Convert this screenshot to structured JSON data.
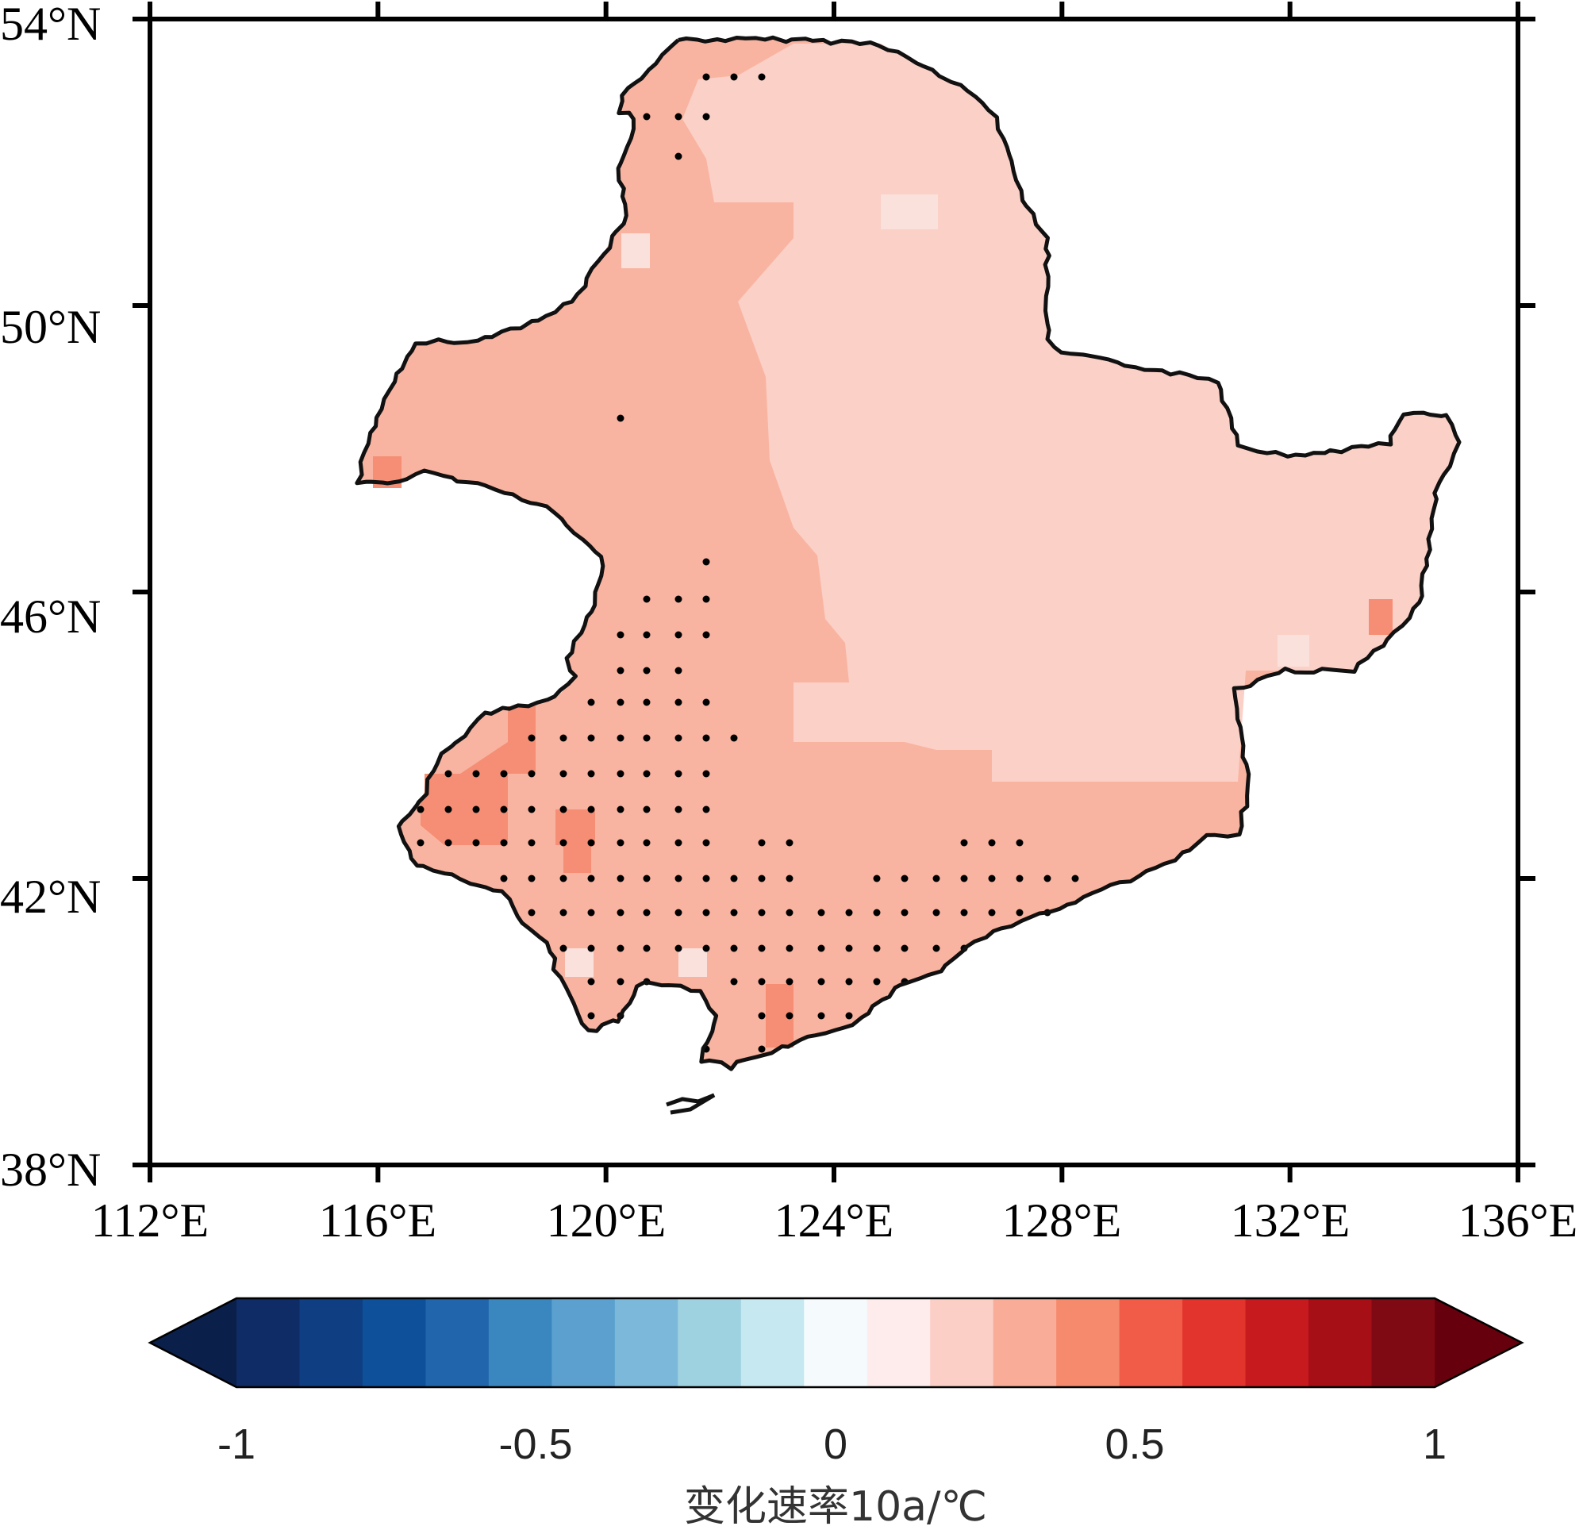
{
  "map": {
    "lat_labels": [
      "54°N",
      "50°N",
      "46°N",
      "42°N",
      "38°N"
    ],
    "lon_labels": [
      "112°E",
      "116°E",
      "120°E",
      "124°E",
      "128°E",
      "132°E",
      "136°E"
    ],
    "lat_values": [
      54,
      50,
      46,
      42,
      38
    ],
    "lon_values": [
      112,
      116,
      120,
      124,
      128,
      132,
      136
    ],
    "lon_range": [
      112,
      136
    ],
    "lat_range": [
      38,
      54
    ],
    "fill_levels": {
      "level_0_1": "#fbe1dc",
      "level_0_2": "#fbd0c7",
      "level_0_3": "#f9b4a1",
      "level_0_4": "#f58e74"
    },
    "boundary_color": "#111111",
    "significance_marker": "dot"
  },
  "colorbar": {
    "title": "变化速率10a/℃",
    "ticks": [
      "-1",
      "-0.5",
      "0",
      "0.5",
      "1"
    ],
    "tick_values": [
      -1,
      -0.5,
      0,
      0.5,
      1
    ],
    "range": [
      -1,
      1
    ],
    "colors": [
      "#0b1f4b",
      "#0f2c66",
      "#0f3f82",
      "#0e519a",
      "#2166ac",
      "#3a87c0",
      "#5ba0cf",
      "#7cb8da",
      "#9fd2e1",
      "#c6e8f0",
      "#f5fbfd",
      "#fdeceb",
      "#fbcfc6",
      "#f9ad98",
      "#f58a6d",
      "#f05c47",
      "#e2342c",
      "#c71a1f",
      "#a50f15",
      "#800a13",
      "#67000d"
    ]
  }
}
